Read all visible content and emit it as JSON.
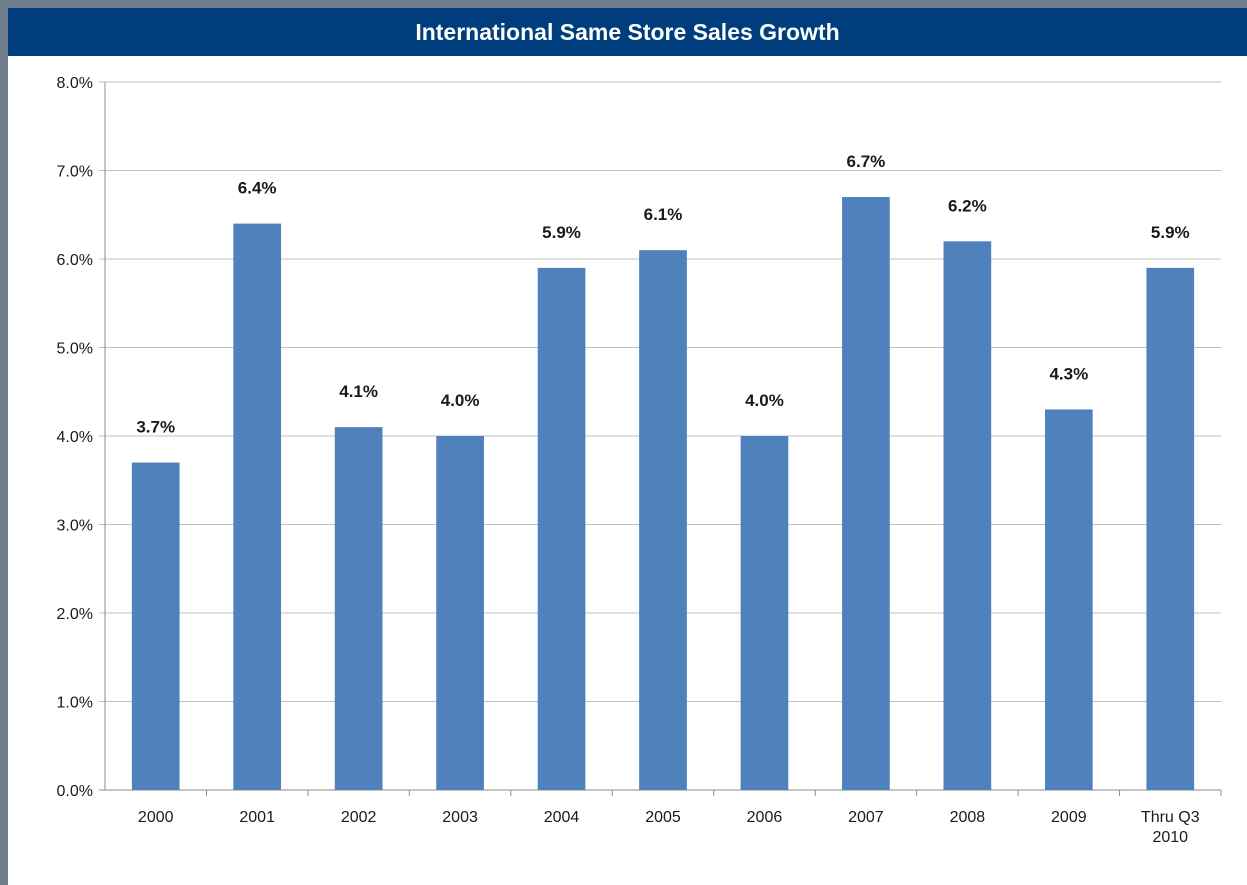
{
  "title": "International Same Store Sales Growth",
  "colors": {
    "header": "#003d7d",
    "bar": "#4f81bd",
    "grid": "#bfbfbf"
  },
  "chart_data": {
    "type": "bar",
    "title": "International Same Store Sales Growth",
    "xlabel": "",
    "ylabel": "",
    "categories": [
      [
        "2000"
      ],
      [
        "2001"
      ],
      [
        "2002"
      ],
      [
        "2003"
      ],
      [
        "2004"
      ],
      [
        "2005"
      ],
      [
        "2006"
      ],
      [
        "2007"
      ],
      [
        "2008"
      ],
      [
        "2009"
      ],
      [
        "Thru Q3",
        "2010"
      ]
    ],
    "values": [
      3.7,
      6.4,
      4.1,
      4.0,
      5.9,
      6.1,
      4.0,
      6.7,
      6.2,
      4.3,
      5.9
    ],
    "data_labels": [
      "3.7%",
      "6.4%",
      "4.1%",
      "4.0%",
      "5.9%",
      "6.1%",
      "4.0%",
      "6.7%",
      "6.2%",
      "4.3%",
      "5.9%"
    ],
    "ylim": [
      0,
      8
    ],
    "yticks": [
      "0.0%",
      "1.0%",
      "2.0%",
      "3.0%",
      "4.0%",
      "5.0%",
      "6.0%",
      "7.0%",
      "8.0%"
    ],
    "grid": true,
    "legend": "none"
  }
}
